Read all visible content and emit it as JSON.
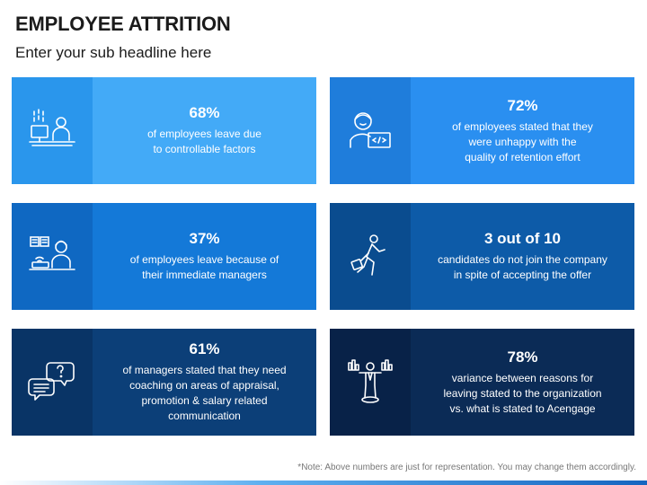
{
  "header": {
    "title": "EMPLOYEE ATTRITION",
    "subtitle": "Enter your sub headline here"
  },
  "cards": [
    {
      "stat": "68%",
      "desc": "of employees leave due\nto controllable factors",
      "icon": "desk-worker-icon",
      "bg": "#43aaf7",
      "icon_bg": "#2a96ec"
    },
    {
      "stat": "72%",
      "desc": "of employees stated that they\nwere unhappy with the\nquality of retention effort",
      "icon": "coder-laptop-icon",
      "bg": "#2a8ff0",
      "icon_bg": "#1f7ddb"
    },
    {
      "stat": "37%",
      "desc": "of employees leave because of\ntheir immediate managers",
      "icon": "remote-worker-icon",
      "bg": "#1479d8",
      "icon_bg": "#0f68c2"
    },
    {
      "stat": "3 out of 10",
      "desc": "candidates do not join the company\nin spite of accepting the offer",
      "icon": "walking-person-icon",
      "bg": "#0d5ba8",
      "icon_bg": "#0a4c8f"
    },
    {
      "stat": "61%",
      "desc": "of managers stated that they need\ncoaching on areas of appraisal,\npromotion & salary related\ncommunication",
      "icon": "chat-question-icon",
      "bg": "#0c3f78",
      "icon_bg": "#093466"
    },
    {
      "stat": "78%",
      "desc": "variance between reasons for\nleaving stated to the organization\nvs. what is stated to Acengage",
      "icon": "balance-person-icon",
      "bg": "#0b2b56",
      "icon_bg": "#082248"
    }
  ],
  "footnote": "*Note: Above numbers are just for representation. You may change them accordingly."
}
